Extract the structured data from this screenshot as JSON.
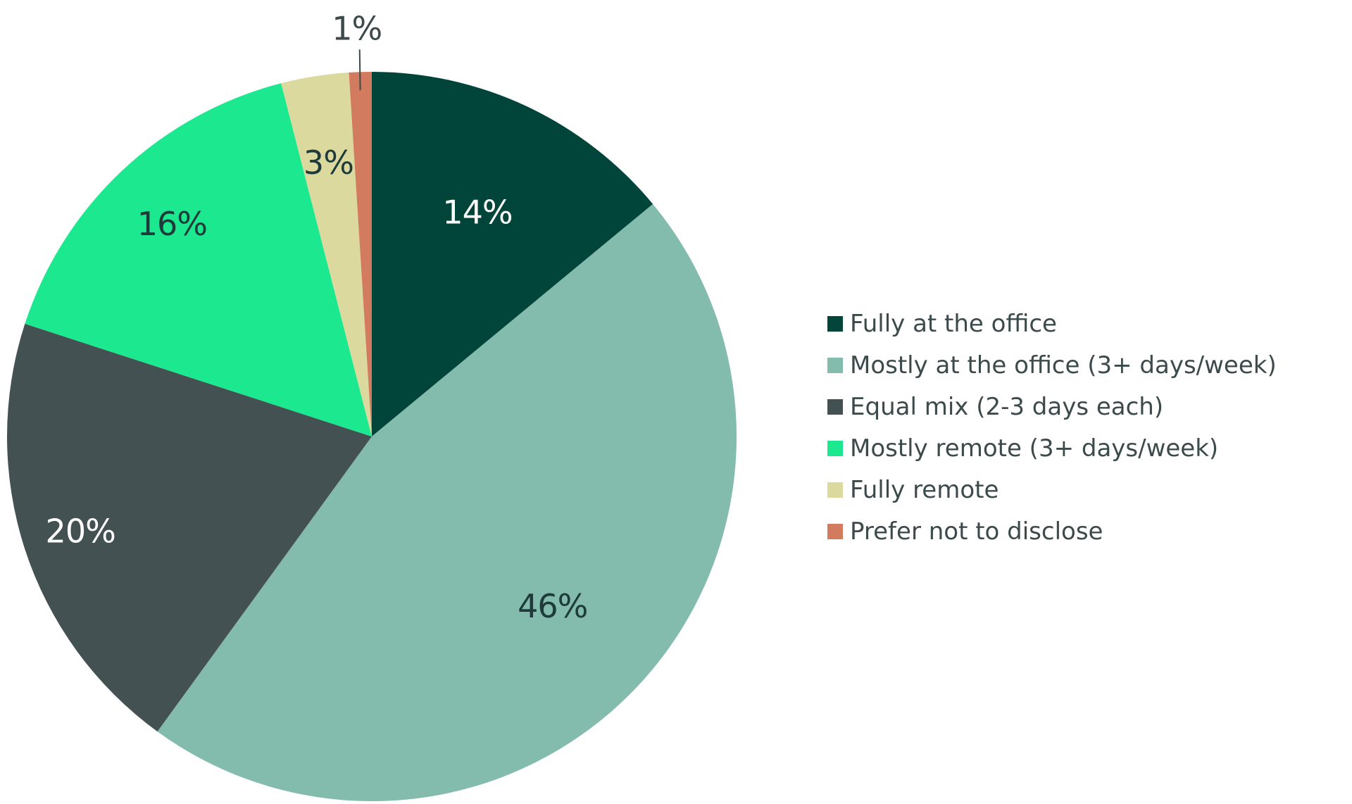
{
  "chart_data": {
    "type": "pie",
    "title": "",
    "legend_position": "right",
    "slices": [
      {
        "label": "Fully at the office",
        "value": 14,
        "value_label": "14%",
        "color": "#01453a",
        "text_color": "#ffffff"
      },
      {
        "label": "Mostly at the office (3+ days/week)",
        "value": 46,
        "value_label": "46%",
        "color": "#83bbac",
        "text_color": "#1f3a3a"
      },
      {
        "label": "Equal mix (2-3 days each)",
        "value": 20,
        "value_label": "20%",
        "color": "#435152",
        "text_color": "#ffffff"
      },
      {
        "label": "Mostly remote (3+ days/week)",
        "value": 16,
        "value_label": "16%",
        "color": "#1ce88f",
        "text_color": "#1f3a3a"
      },
      {
        "label": "Fully remote",
        "value": 3,
        "value_label": "3%",
        "color": "#dbd99e",
        "text_color": "#1f3a3a"
      },
      {
        "label": "Prefer not to disclose",
        "value": 1,
        "value_label": "1%",
        "color": "#d27b5e",
        "text_color": "#3c4a4c"
      }
    ]
  }
}
